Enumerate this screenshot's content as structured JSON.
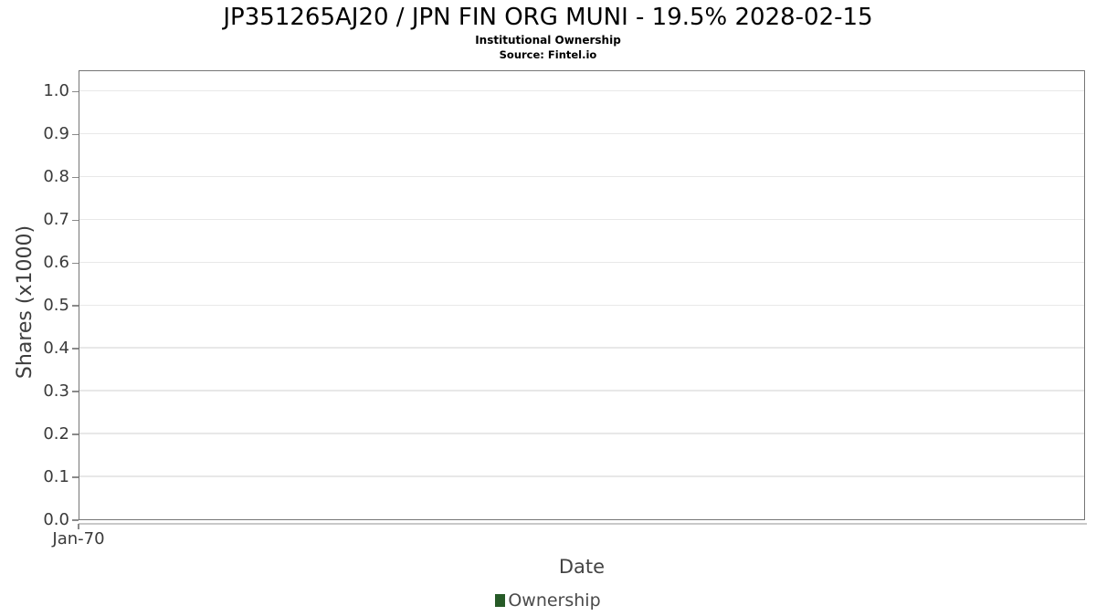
{
  "chart_data": {
    "type": "line",
    "title": "JP351265AJ20 / JPN FIN ORG MUNI - 19.5% 2028-02-15",
    "subtitle": "Institutional Ownership",
    "source": "Source: Fintel.io",
    "xlabel": "Date",
    "ylabel": "Shares (x1000)",
    "ylim": [
      0.0,
      1.05
    ],
    "yticks": [
      "0.0",
      "0.1",
      "0.2",
      "0.3",
      "0.4",
      "0.5",
      "0.6",
      "0.7",
      "0.8",
      "0.9",
      "1.0"
    ],
    "xticks": [
      "Jan-70"
    ],
    "grid": true,
    "legend_position": "bottom",
    "series": [
      {
        "name": "Ownership",
        "color": "#265a27",
        "x": [],
        "values": []
      }
    ]
  },
  "colors": {
    "plot_border": "#757575",
    "gridline": "#e8e8e8",
    "tick_text": "#3a3a3a",
    "axis_label_text": "#444444",
    "legend_marker": "#265a27",
    "background": "#ffffff"
  }
}
